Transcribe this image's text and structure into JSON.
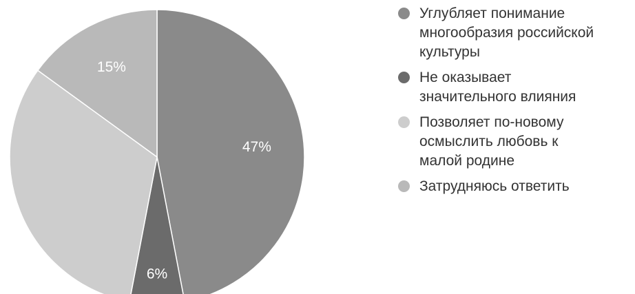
{
  "chart_data": {
    "type": "pie",
    "start_angle_deg": 0,
    "direction": "clockwise",
    "slices": [
      {
        "label": "Углубляет понимание\nмногообразия российской\nкультуры",
        "value": 47,
        "value_label": "47%",
        "color": "#8a8a8a"
      },
      {
        "label": "Не оказывает\nзначительного влияния",
        "value": 6,
        "value_label": "6%",
        "color": "#6b6b6b"
      },
      {
        "label": "Позволяет по-новому\nосмыслить любовь к\nмалой родине",
        "value": 32,
        "value_label": "",
        "color": "#cdcdcd"
      },
      {
        "label": "Затрудняюсь ответить",
        "value": 15,
        "value_label": "15%",
        "color": "#b9b9b9"
      }
    ],
    "legend_position": "right"
  }
}
